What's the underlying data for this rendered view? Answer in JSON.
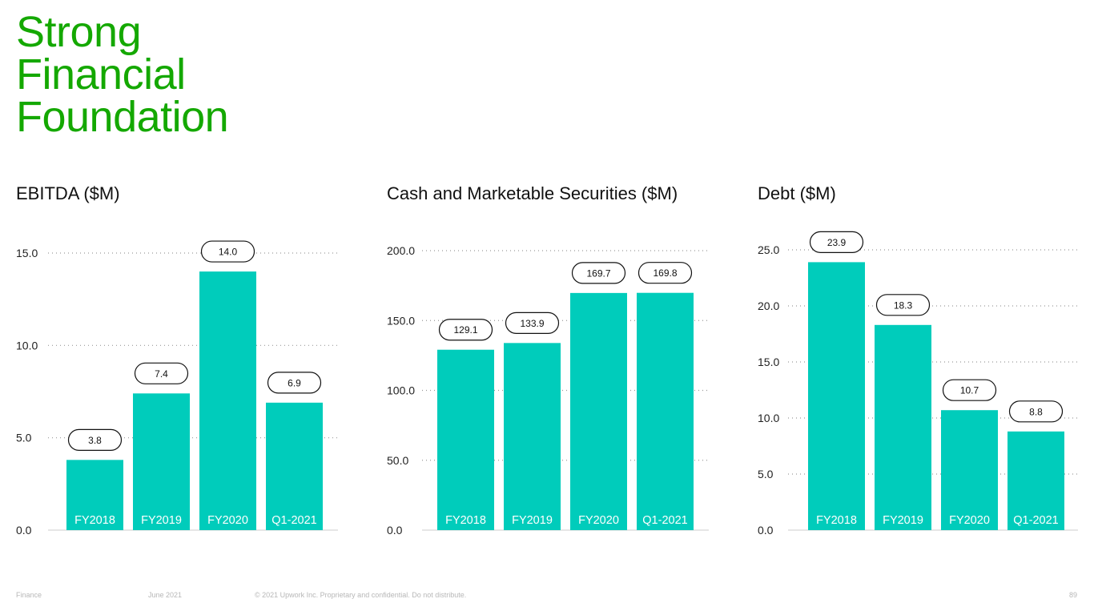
{
  "page": {
    "title_lines": [
      "Strong",
      "Financial",
      "Foundation"
    ],
    "accent_color": "#14a800",
    "bar_color": "#00ccbb"
  },
  "footer": {
    "section": "Finance",
    "date": "June 2021",
    "copyright": "© 2021 Upwork Inc. Proprietary and confidential. Do not distribute.",
    "page_number": "89"
  },
  "chart_data": [
    {
      "type": "bar",
      "title": "EBITDA ($M)",
      "categories": [
        "FY2018",
        "FY2019",
        "FY2020",
        "Q1-2021"
      ],
      "values": [
        3.8,
        7.4,
        14.0,
        6.9
      ],
      "value_labels": [
        "3.8",
        "7.4",
        "14.0",
        "6.9"
      ],
      "yticks": [
        "0.0",
        "5.0",
        "10.0",
        "15.0"
      ],
      "ylim": [
        0,
        15
      ],
      "grid": true
    },
    {
      "type": "bar",
      "title": "Cash and Marketable Securities ($M)",
      "categories": [
        "FY2018",
        "FY2019",
        "FY2020",
        "Q1-2021"
      ],
      "values": [
        129.1,
        133.9,
        169.7,
        169.8
      ],
      "value_labels": [
        "129.1",
        "133.9",
        "169.7",
        "169.8"
      ],
      "yticks": [
        "0.0",
        "50.0",
        "100.0",
        "150.0",
        "200.0"
      ],
      "ylim": [
        0,
        200
      ],
      "grid": true
    },
    {
      "type": "bar",
      "title": "Debt ($M)",
      "categories": [
        "FY2018",
        "FY2019",
        "FY2020",
        "Q1-2021"
      ],
      "values": [
        23.9,
        18.3,
        10.7,
        8.8
      ],
      "value_labels": [
        "23.9",
        "18.3",
        "10.7",
        "8.8"
      ],
      "yticks": [
        "0.0",
        "5.0",
        "10.0",
        "15.0",
        "20.0",
        "25.0"
      ],
      "ylim": [
        0,
        25
      ],
      "grid": true
    }
  ]
}
